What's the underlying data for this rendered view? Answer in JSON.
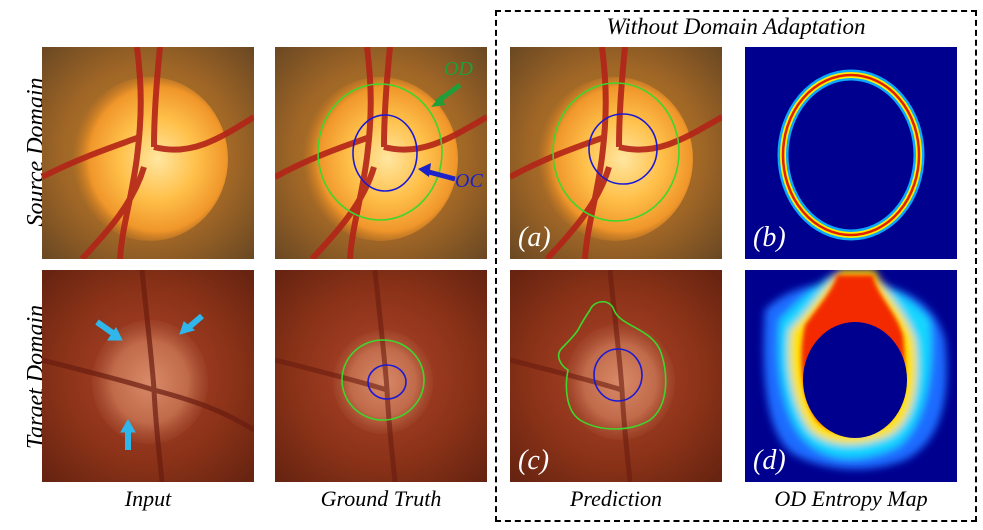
{
  "box_title": "Without Domain Adaptation",
  "row_labels": {
    "source": "Source Domain",
    "target": "Target Domain"
  },
  "col_labels": {
    "input": "Input",
    "ground_truth": "Ground Truth",
    "prediction": "Prediction",
    "entropy": "OD Entropy Map"
  },
  "panel_tags": {
    "a": "(a)",
    "b": "(b)",
    "c": "(c)",
    "d": "(d)"
  },
  "annotations": {
    "od": "OD",
    "oc": "OC"
  },
  "colors": {
    "od_contour": "#3ed62e",
    "oc_contour": "#1a1ad6",
    "od_label": "#1f9e3a",
    "oc_label": "#1a22c8",
    "arrow_cyan": "#2fb6ea"
  }
}
